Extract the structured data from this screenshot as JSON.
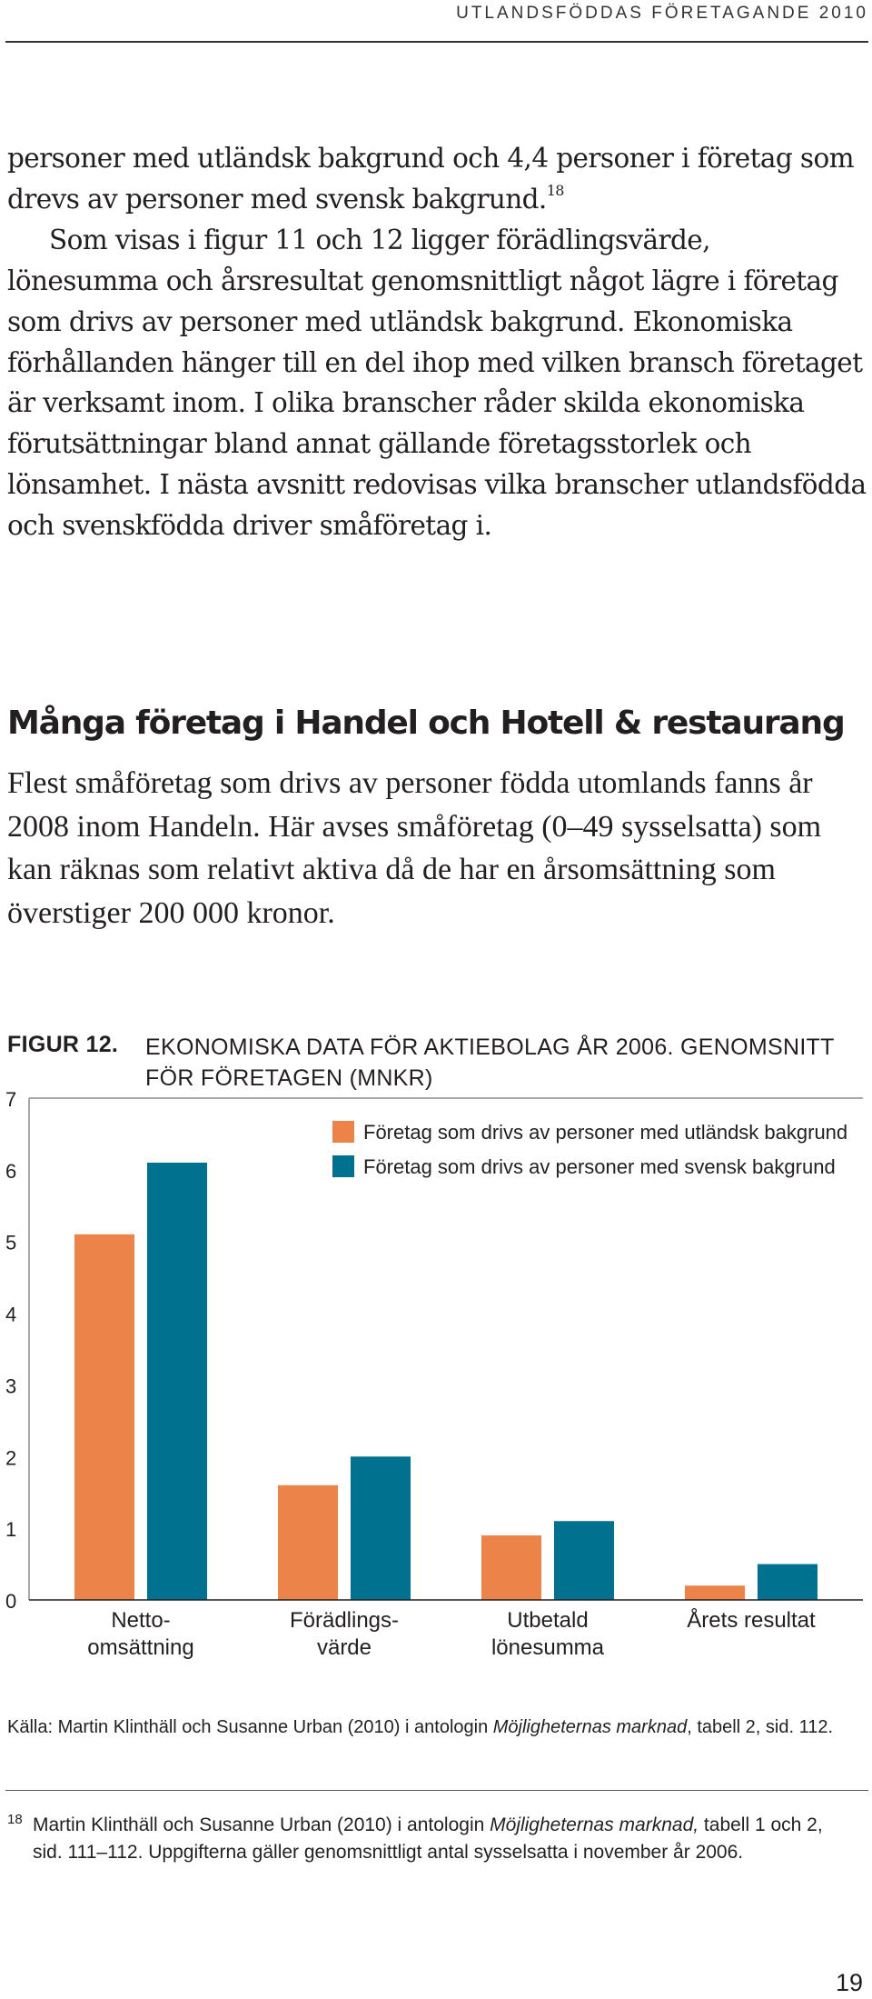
{
  "running_header": "UTLANDSFÖDDAS FÖRETAGANDE 2010",
  "body": {
    "p1": "personer med utländsk bakgrund och 4,4 personer i företag som drevs av personer med svensk bakgrund.",
    "p1_ref": "18",
    "p2": "Som visas i figur 11 och 12 ligger förädlingsvärde, lönesumma och årsresultat genomsnittligt något lägre i företag som drivs av personer med utländsk bakgrund. Ekonomiska förhållanden hänger till en del ihop med vilken bransch företaget är verksamt inom. I olika branscher råder skilda ekonomiska förutsättningar bland annat gällande företagsstorlek och lönsamhet. I nästa avsnitt redovisas vilka branscher utlandsfödda och svenskfödda driver småföretag i."
  },
  "section": {
    "heading": "Många företag i Handel och Hotell & restaurang",
    "intro": "Flest småföretag som drivs av personer födda utomlands fanns år 2008 inom Handeln. Här avses småföretag (0–49 sysselsatta) som kan räknas som relativt aktiva då de har en årsomsättning som överstiger 200 000 kronor."
  },
  "figure": {
    "label": "FIGUR 12.",
    "title": "EKONOMISKA DATA FÖR AKTIEBOLAG ÅR 2006. GENOMSNITT FÖR FÖRETAGEN (MNKR)"
  },
  "chart_data": {
    "type": "bar",
    "title": "",
    "xlabel": "",
    "ylabel": "",
    "categories": [
      [
        "Netto-",
        "omsättning"
      ],
      [
        "Förädlings-",
        "värde"
      ],
      [
        "Utbetald",
        "lönesumma"
      ],
      [
        "Årets resultat"
      ]
    ],
    "series": [
      {
        "name": "Företag som drivs av personer med utländsk bakgrund",
        "color": "#ec8449",
        "values": [
          5.1,
          1.6,
          0.9,
          0.2
        ]
      },
      {
        "name": "Företag som drivs av personer med svensk bakgrund",
        "color": "#00728f",
        "values": [
          6.1,
          2.0,
          1.1,
          0.5
        ]
      }
    ],
    "ylim": [
      0,
      7
    ],
    "yticks": [
      "0",
      "1",
      "2",
      "3",
      "4",
      "5",
      "6",
      "7"
    ],
    "grid": false,
    "legend_position": "top-right"
  },
  "source": {
    "prefix": "Källa: Martin Klinthäll och Susanne Urban (2010) i antologin ",
    "title": "Möjligheternas marknad",
    "suffix": ", tabell 2, sid. 112."
  },
  "footnote": {
    "number": "18",
    "prefix": "Martin Klinthäll och Susanne Urban (2010) i antologin ",
    "title": "Möjligheternas marknad,",
    "suffix": " tabell 1 och 2, sid. 111–112. Uppgifterna gäller genomsnittligt antal sysselsatta i november år 2006."
  },
  "page_number": "19"
}
